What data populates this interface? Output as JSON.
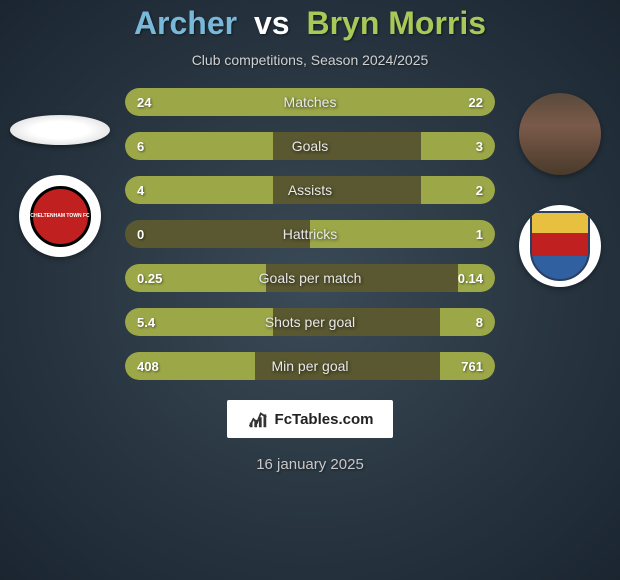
{
  "title": {
    "player1": "Archer",
    "vs": "vs",
    "player2": "Bryn Morris",
    "player1_color": "#78b8d8",
    "player2_color": "#a8c858"
  },
  "subtitle": "Club competitions, Season 2024/2025",
  "clubs": {
    "left_name": "CHELTENHAM TOWN FC",
    "left_colors": {
      "outer": "#ffffff",
      "inner": "#c02020",
      "border": "#000000"
    },
    "right_colors": {
      "top": "#e8c040",
      "mid": "#c02020",
      "bottom": "#3060a0",
      "border": "#2a4060"
    }
  },
  "stats": {
    "bar_bg": "#5a5830",
    "bar_fill": "#9ca848",
    "rows": [
      {
        "label": "Matches",
        "left": "24",
        "right": "22",
        "left_pct": 52,
        "right_pct": 48
      },
      {
        "label": "Goals",
        "left": "6",
        "right": "3",
        "left_pct": 40,
        "right_pct": 20
      },
      {
        "label": "Assists",
        "left": "4",
        "right": "2",
        "left_pct": 40,
        "right_pct": 20
      },
      {
        "label": "Hattricks",
        "left": "0",
        "right": "1",
        "left_pct": 0,
        "right_pct": 50
      },
      {
        "label": "Goals per match",
        "left": "0.25",
        "right": "0.14",
        "left_pct": 38,
        "right_pct": 10
      },
      {
        "label": "Shots per goal",
        "left": "5.4",
        "right": "8",
        "left_pct": 40,
        "right_pct": 15
      },
      {
        "label": "Min per goal",
        "left": "408",
        "right": "761",
        "left_pct": 35,
        "right_pct": 15
      }
    ]
  },
  "footer": {
    "brand": "FcTables.com",
    "date": "16 january 2025"
  }
}
